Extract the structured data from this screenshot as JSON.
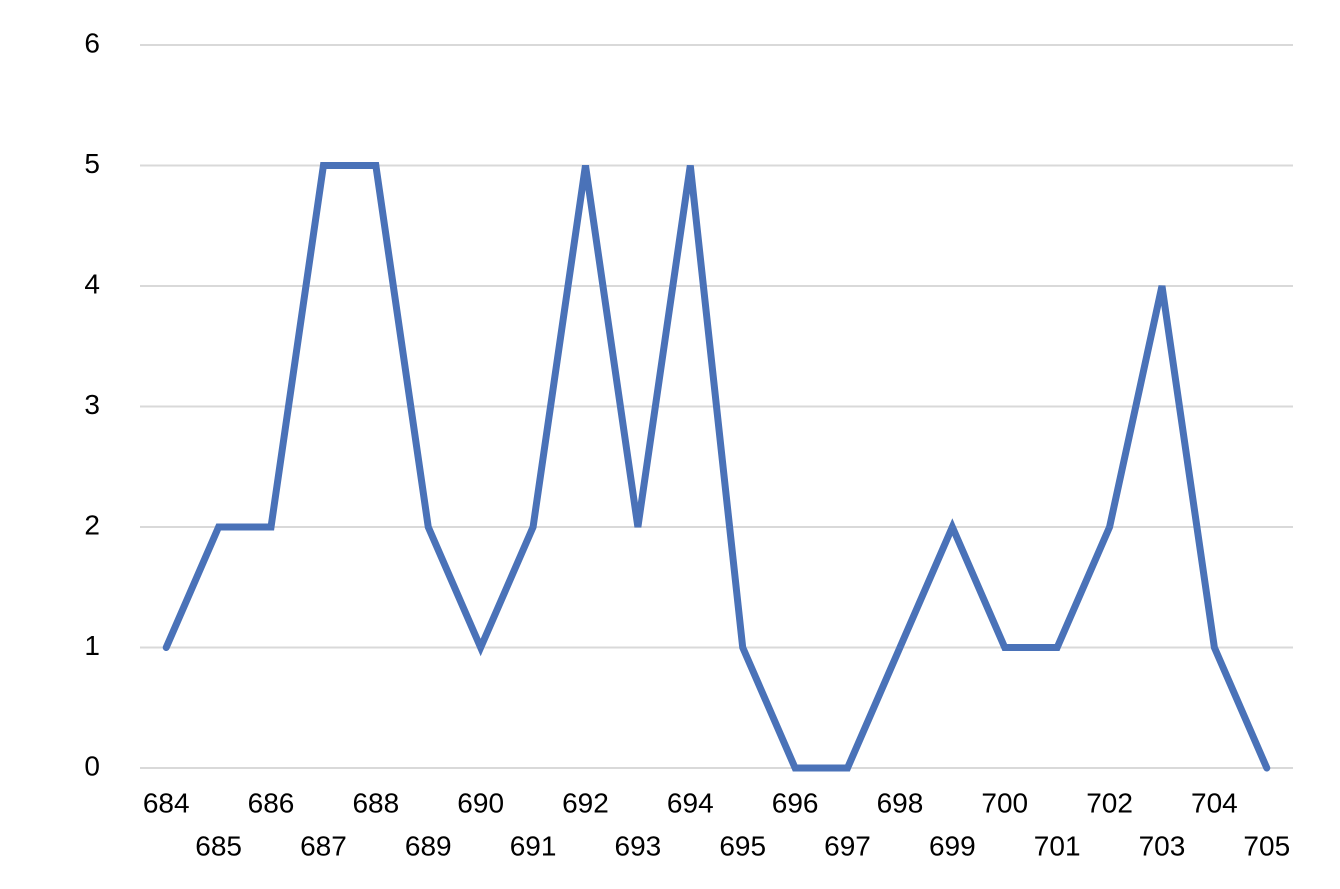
{
  "chart_data": {
    "type": "line",
    "categories": [
      "684",
      "685",
      "686",
      "687",
      "688",
      "689",
      "690",
      "691",
      "692",
      "693",
      "694",
      "695",
      "696",
      "697",
      "698",
      "699",
      "700",
      "701",
      "702",
      "703",
      "704",
      "705"
    ],
    "series": [
      {
        "name": null,
        "color": "#4a72b8",
        "values": [
          1,
          2,
          2,
          5,
          5,
          2,
          1,
          2,
          5,
          2,
          5,
          1,
          0,
          0,
          1,
          2,
          1,
          1,
          2,
          4,
          1,
          0
        ]
      }
    ],
    "ylim": [
      0,
      6
    ],
    "yticks": [
      0,
      1,
      2,
      3,
      4,
      5,
      6
    ],
    "grid": true
  }
}
